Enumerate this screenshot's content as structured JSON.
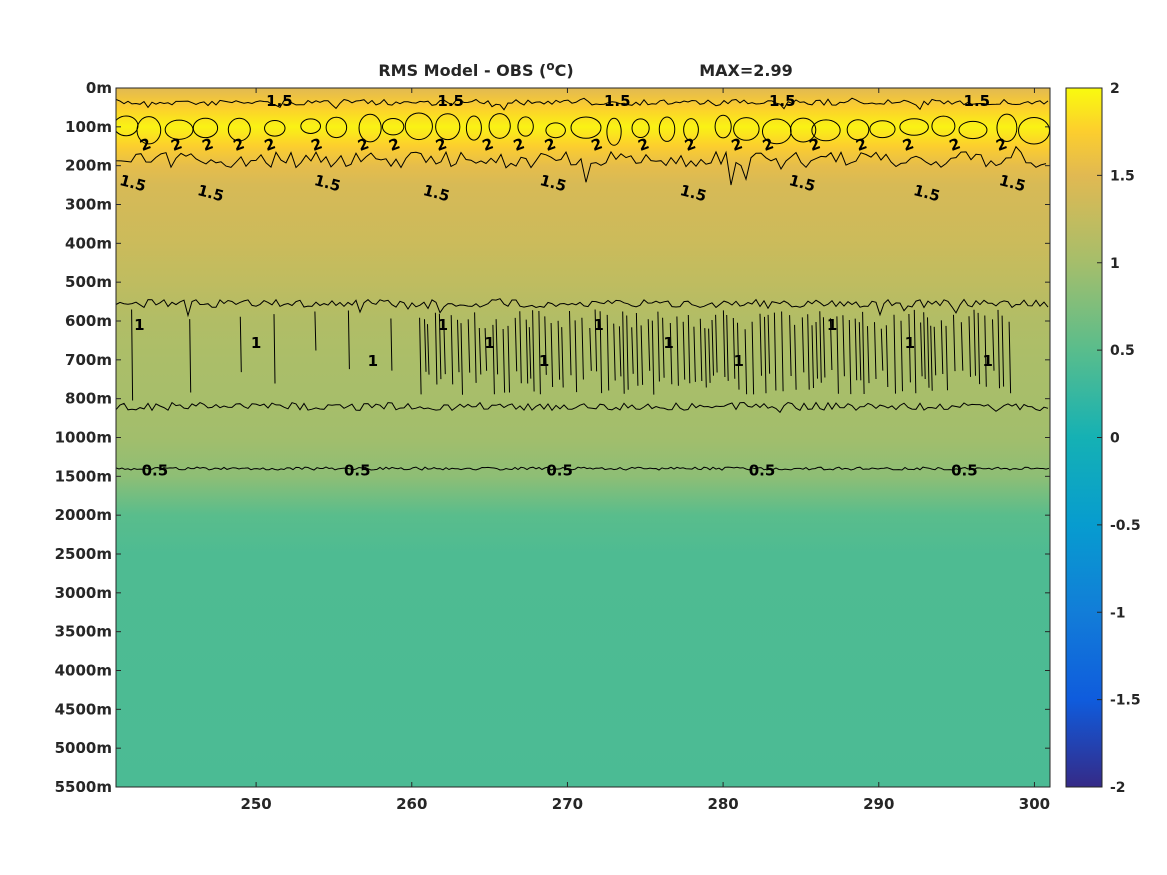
{
  "chart_data": {
    "type": "heatmap",
    "title": "RMS Model - OBS (",
    "title_unit_sup": "o",
    "title_unit_tail": "C)",
    "max_annotation": "MAX=2.99",
    "xlabel": "",
    "ylabel": "",
    "x_range": [
      241,
      301
    ],
    "x_ticks": [
      250,
      260,
      270,
      280,
      290,
      300
    ],
    "x_tick_labels": [
      "250",
      "260",
      "270",
      "280",
      "290",
      "300"
    ],
    "y_tick_labels": [
      "0m",
      "100m",
      "200m",
      "300m",
      "400m",
      "500m",
      "600m",
      "700m",
      "800m",
      "1000m",
      "1500m",
      "2000m",
      "2500m",
      "3000m",
      "3500m",
      "4000m",
      "4500m",
      "5000m",
      "5500m"
    ],
    "color_range": [
      -2,
      2
    ],
    "colorbar_ticks": [
      2,
      1.5,
      1,
      0.5,
      0,
      -0.5,
      -1,
      -1.5,
      -2
    ],
    "colorbar_tick_labels": [
      "2",
      "1.5",
      "1",
      "0.5",
      "0",
      "-0.5",
      "-1",
      "-1.5",
      "-2"
    ],
    "colormap": "parula",
    "profile": {
      "depth_index": [
        0,
        0.5,
        1,
        1.5,
        2,
        2.5,
        3,
        4,
        5,
        6,
        7,
        8,
        9,
        10,
        11,
        12,
        18
      ],
      "values": [
        1.5,
        1.75,
        1.95,
        1.75,
        1.55,
        1.42,
        1.38,
        1.32,
        1.22,
        1.1,
        1.05,
        1.02,
        0.98,
        0.85,
        0.5,
        0.42,
        0.4
      ]
    },
    "contours": [
      {
        "level": 1.5,
        "label": "1.5",
        "label_x": [
          251.5,
          262.5,
          273.2,
          283.8,
          296.3
        ]
      },
      {
        "level": 2,
        "label": "2",
        "label_x": [
          243,
          245,
          247,
          249,
          251,
          254,
          257,
          259,
          262,
          265,
          267,
          269,
          272,
          275,
          278,
          281,
          283,
          286,
          289,
          292,
          295,
          298
        ]
      },
      {
        "level": 1.5,
        "label": "1.5",
        "label_x": [
          242,
          247,
          254.5,
          261.5,
          269,
          278,
          285,
          293,
          298.5
        ]
      },
      {
        "level": 1,
        "label": "1",
        "label_x": [
          242.5,
          250,
          257.5,
          262,
          265,
          268.5,
          272,
          276.5,
          281,
          287,
          292,
          297
        ]
      },
      {
        "level": 0.5,
        "label": "0.5",
        "label_x": [
          243.5,
          256.5,
          269.5,
          282.5,
          295.5
        ]
      }
    ]
  }
}
